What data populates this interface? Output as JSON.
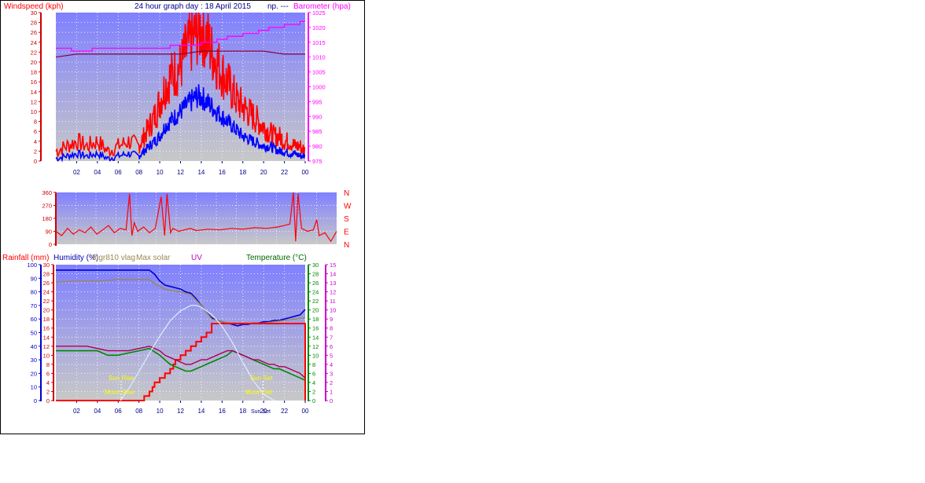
{
  "header": {
    "title": "24 hour graph day : 18 April 2015",
    "title_suffix": "np. ---",
    "left_axis": "Windspeed (kph)",
    "right_axis": "Barometer (hpa)"
  },
  "bottom_header": {
    "rainfall": "Rainfall (mm)",
    "humidity": "Humidity (%)",
    "sensor": "thgr810 vlag",
    "solar": "Max solar",
    "uv": "UV",
    "temperature": "Temperature (°C)"
  },
  "compass": [
    "N",
    "W",
    "S",
    "E",
    "N"
  ],
  "markers": {
    "sun_rise": "Sun Rise",
    "moon_rise": "Moon Rise",
    "sun_set": "Sun Set",
    "moon_set": "Moon Set",
    "sun_set_bottom": "Sun Set"
  },
  "colors": {
    "wind_gust": "#ff0000",
    "wind_avg": "#0000ff",
    "barometer": "#ff00ff",
    "barometer_alt": "#880044",
    "direction": "#ff0000",
    "humidity": "#0000cc",
    "humidity_sensor": "#998855",
    "rainfall": "#ff0000",
    "temperature": "#008800",
    "dewpoint": "#aa0055",
    "solar": "#ddeeff",
    "marker_text": "#ffff00",
    "plot_top": "#8080ff",
    "plot_bottom": "#c8c8c8"
  },
  "chart_data": [
    {
      "type": "line",
      "title": "24 hour graph day : 18 April 2015",
      "x_ticks": [
        "02",
        "04",
        "06",
        "08",
        "10",
        "12",
        "14",
        "16",
        "18",
        "20",
        "22",
        "00"
      ],
      "xlim": [
        0,
        24
      ],
      "ylabel": "Windspeed (kph)",
      "ylim": [
        0,
        30
      ],
      "y_ticks": [
        "0",
        "2",
        "4",
        "6",
        "8",
        "10",
        "12",
        "14",
        "16",
        "18",
        "20",
        "22",
        "24",
        "26",
        "28",
        "30"
      ],
      "y2label": "Barometer (hpa)",
      "y2lim": [
        975,
        1025
      ],
      "y2_ticks": [
        "975",
        "980",
        "985",
        "990",
        "995",
        "1000",
        "1005",
        "1010",
        "1015",
        "1020",
        "1025"
      ],
      "series": [
        {
          "axis": "y",
          "style": "gust",
          "x": [
            0,
            1,
            2,
            3,
            4,
            5,
            6,
            7,
            8,
            8.5,
            9,
            9.5,
            10,
            10.5,
            11,
            11.5,
            12,
            12.5,
            13,
            13.5,
            14,
            14.5,
            15,
            15.5,
            16,
            16.5,
            17,
            17.5,
            18,
            18.5,
            19,
            19.5,
            20,
            20.5,
            21,
            21.5,
            22,
            22.5,
            23,
            23.5,
            24
          ],
          "y": [
            2,
            3,
            4,
            3,
            4,
            2,
            3,
            4,
            3,
            5,
            7,
            9,
            12,
            15,
            17,
            18,
            19,
            22,
            24,
            26,
            27,
            25,
            22,
            20,
            18,
            16,
            14,
            12,
            11,
            10,
            9,
            8,
            7,
            6,
            5,
            5,
            4,
            4,
            3,
            3,
            2
          ]
        },
        {
          "axis": "y",
          "style": "avg",
          "x": [
            0,
            1,
            2,
            3,
            4,
            5,
            6,
            7,
            8,
            8.5,
            9,
            9.5,
            10,
            10.5,
            11,
            11.5,
            12,
            12.5,
            13,
            13.5,
            14,
            14.5,
            15,
            15.5,
            16,
            16.5,
            17,
            17.5,
            18,
            18.5,
            19,
            19.5,
            20,
            20.5,
            21,
            21.5,
            22,
            22.5,
            23,
            23.5,
            24
          ],
          "y": [
            0.5,
            1,
            1.5,
            1,
            1.5,
            0.5,
            1,
            1.5,
            1,
            2,
            3,
            4,
            5,
            7,
            8,
            9,
            10,
            11,
            12,
            13,
            13,
            12,
            11,
            10,
            9,
            8,
            7,
            6,
            5,
            4.5,
            4,
            3.5,
            3,
            3,
            2.5,
            2,
            2,
            1.5,
            1.5,
            1,
            1
          ]
        },
        {
          "axis": "y2",
          "style": "pressure",
          "x": [
            0,
            1,
            1.5,
            3,
            3.5,
            5,
            6,
            8,
            10,
            11,
            12,
            13,
            14,
            15,
            15.5,
            16,
            16.5,
            17,
            17.5,
            18,
            18.5,
            19,
            19.5,
            20,
            20.5,
            21,
            21.5,
            22,
            22.5,
            23,
            23.5,
            24
          ],
          "y": [
            1013,
            1013,
            1012,
            1012,
            1013,
            1013,
            1013,
            1013,
            1013,
            1014,
            1014,
            1014,
            1015,
            1015,
            1016,
            1016,
            1017,
            1017,
            1017,
            1018,
            1018,
            1018,
            1019,
            1019,
            1020,
            1020,
            1020,
            1021,
            1021,
            1021,
            1022,
            1022
          ]
        },
        {
          "axis": "y2",
          "style": "pressure-alt",
          "x": [
            0,
            2,
            4,
            6,
            8,
            10,
            12,
            14,
            16,
            18,
            20,
            22,
            24
          ],
          "y": [
            1010,
            1011,
            1011,
            1011,
            1011,
            1011,
            1011,
            1012,
            1012,
            1012,
            1012,
            1011,
            1011
          ]
        }
      ]
    },
    {
      "type": "line",
      "x_ticks": [],
      "xlim": [
        0,
        24
      ],
      "ylabel": "",
      "ylim": [
        0,
        360
      ],
      "y_ticks": [
        "0",
        "90",
        "180",
        "270",
        "360"
      ],
      "series": [
        {
          "style": "direction",
          "x": [
            0,
            0.5,
            1,
            1.5,
            2,
            2.5,
            3,
            3.5,
            4,
            4.5,
            5,
            5.5,
            6,
            6.3,
            6.5,
            6.7,
            7,
            7.5,
            8,
            8.5,
            9,
            9.3,
            9.5,
            9.8,
            10,
            10.5,
            11,
            11.5,
            12,
            13,
            14,
            15,
            16,
            17,
            18,
            19,
            19.5,
            20,
            20.3,
            20.5,
            20.7,
            21,
            21.5,
            22,
            22.3,
            22.5,
            23,
            23.5,
            24
          ],
          "y": [
            90,
            60,
            110,
            70,
            100,
            80,
            120,
            70,
            100,
            130,
            80,
            110,
            100,
            350,
            60,
            150,
            90,
            120,
            80,
            110,
            330,
            60,
            350,
            80,
            110,
            90,
            100,
            110,
            95,
            105,
            100,
            110,
            105,
            115,
            110,
            120,
            130,
            140,
            360,
            20,
            350,
            110,
            90,
            100,
            170,
            60,
            80,
            20,
            90
          ]
        }
      ]
    },
    {
      "type": "line",
      "x_ticks": [
        "02",
        "04",
        "06",
        "08",
        "10",
        "12",
        "14",
        "16",
        "18",
        "20",
        "22",
        "00"
      ],
      "xlim": [
        0,
        24
      ],
      "ylabel": "Humidity (%)",
      "ylim": [
        0,
        100
      ],
      "y_ticks": [
        "0",
        "10",
        "20",
        "30",
        "40",
        "50",
        "60",
        "70",
        "80",
        "90",
        "100"
      ],
      "y2label": "Rainfall (mm)",
      "y2lim": [
        0,
        30
      ],
      "y2_ticks": [
        "0",
        "2",
        "4",
        "6",
        "8",
        "10",
        "12",
        "14",
        "16",
        "18",
        "20",
        "22",
        "24",
        "26",
        "28",
        "30"
      ],
      "y3label": "Temperature (°C)",
      "y3lim": [
        0,
        30
      ],
      "y3_ticks": [
        "0",
        "2",
        "4",
        "6",
        "8",
        "10",
        "12",
        "14",
        "16",
        "18",
        "20",
        "22",
        "24",
        "26",
        "28",
        "30"
      ],
      "y4label": "UV",
      "y4lim": [
        0,
        15
      ],
      "y4_ticks": [
        "0",
        "1",
        "2",
        "3",
        "4",
        "5",
        "6",
        "7",
        "8",
        "9",
        "10",
        "11",
        "12",
        "13",
        "14",
        "15"
      ],
      "series": [
        {
          "axis": "y",
          "style": "humidity",
          "x": [
            0,
            9,
            9.5,
            10,
            10.5,
            11,
            11.5,
            12,
            12.5,
            13,
            13.5,
            14,
            14.5,
            15,
            15.5,
            16,
            16.5,
            17,
            17.5,
            18,
            18.5,
            19,
            19.5,
            20,
            20.5,
            21,
            21.5,
            22,
            22.5,
            23,
            23.5,
            24
          ],
          "y": [
            96,
            96,
            93,
            88,
            85,
            84,
            83,
            82,
            80,
            79,
            75,
            70,
            65,
            61,
            59,
            58,
            57,
            56,
            55,
            56,
            56,
            57,
            57,
            58,
            58,
            59,
            59,
            60,
            61,
            62,
            63,
            67
          ]
        },
        {
          "axis": "y",
          "style": "humidity-sensor",
          "x": [
            0,
            2,
            4,
            6,
            8,
            9,
            9.5,
            10,
            10.5,
            11,
            12,
            13,
            14,
            15,
            16,
            17,
            18,
            19,
            20,
            21,
            22,
            23,
            24
          ],
          "y": [
            87,
            88,
            88,
            89,
            89,
            89,
            86,
            84,
            82,
            81,
            80,
            78,
            70,
            60,
            58,
            57,
            57,
            57,
            57,
            58,
            59,
            60,
            61
          ]
        },
        {
          "axis": "y2",
          "style": "rain",
          "x": [
            0,
            8.3,
            8.5,
            9,
            9.3,
            9.5,
            10,
            10.5,
            11,
            11.3,
            11.5,
            12,
            12.5,
            13,
            13.5,
            14,
            14.5,
            15,
            15.5,
            16,
            17,
            18,
            19,
            20,
            21,
            22,
            23,
            23.9,
            24
          ],
          "y": [
            0,
            0,
            1,
            2,
            3,
            4,
            5,
            6,
            7,
            8,
            9,
            10,
            11,
            12,
            13,
            14,
            15,
            17,
            17,
            17,
            17,
            17,
            17,
            17,
            17,
            17,
            17,
            17,
            0
          ]
        },
        {
          "axis": "y3",
          "style": "temperature",
          "x": [
            0,
            1,
            2,
            3,
            4,
            5,
            6,
            7,
            8,
            9,
            10,
            10.5,
            11,
            11.5,
            12,
            12.5,
            13,
            13.5,
            14,
            14.5,
            15,
            15.5,
            16,
            16.5,
            17,
            17.5,
            18,
            18.5,
            19,
            19.5,
            20,
            20.5,
            21,
            21.5,
            22,
            22.5,
            23,
            23.5,
            24
          ],
          "y": [
            11,
            11,
            11,
            11,
            11,
            10,
            10,
            10.5,
            11,
            11.5,
            10,
            9,
            8,
            7.5,
            7,
            6.5,
            6.5,
            7,
            7.5,
            8,
            8.5,
            9,
            9.5,
            10,
            11,
            10.5,
            10,
            9.5,
            9,
            8.5,
            8,
            7.5,
            7,
            7,
            6.5,
            6,
            5.5,
            5,
            4.5
          ]
        },
        {
          "axis": "y3",
          "style": "dewpoint",
          "x": [
            0,
            1,
            2,
            3,
            4,
            5,
            6,
            7,
            8,
            9,
            10,
            10.5,
            11,
            11.5,
            12,
            12.5,
            13,
            13.5,
            14,
            14.5,
            15,
            15.5,
            16,
            16.5,
            17,
            17.5,
            18,
            18.5,
            19,
            19.5,
            20,
            20.5,
            21,
            21.5,
            22,
            22.5,
            23,
            23.5,
            24
          ],
          "y": [
            12,
            12,
            12,
            12,
            11.5,
            11,
            11,
            11,
            11.5,
            12,
            11,
            10,
            9.5,
            9,
            8.5,
            8,
            8,
            8.5,
            9,
            9,
            9.5,
            10,
            10.5,
            11,
            11,
            10.5,
            10,
            9.5,
            9,
            9,
            8.5,
            8,
            8,
            7.5,
            7.5,
            7,
            6.5,
            6,
            5
          ]
        },
        {
          "axis": "y4",
          "style": "solar",
          "x": [
            6.2,
            7,
            8,
            9,
            10,
            11,
            12,
            13,
            13.5,
            14,
            15,
            16,
            17,
            18,
            19,
            20,
            21,
            21.2
          ],
          "y": [
            0,
            1.3,
            3.2,
            5.2,
            7.1,
            8.8,
            9.9,
            10.5,
            10.5,
            10.3,
            9.5,
            8.2,
            6.4,
            4.2,
            2.2,
            0.7,
            0,
            0
          ]
        }
      ]
    }
  ]
}
